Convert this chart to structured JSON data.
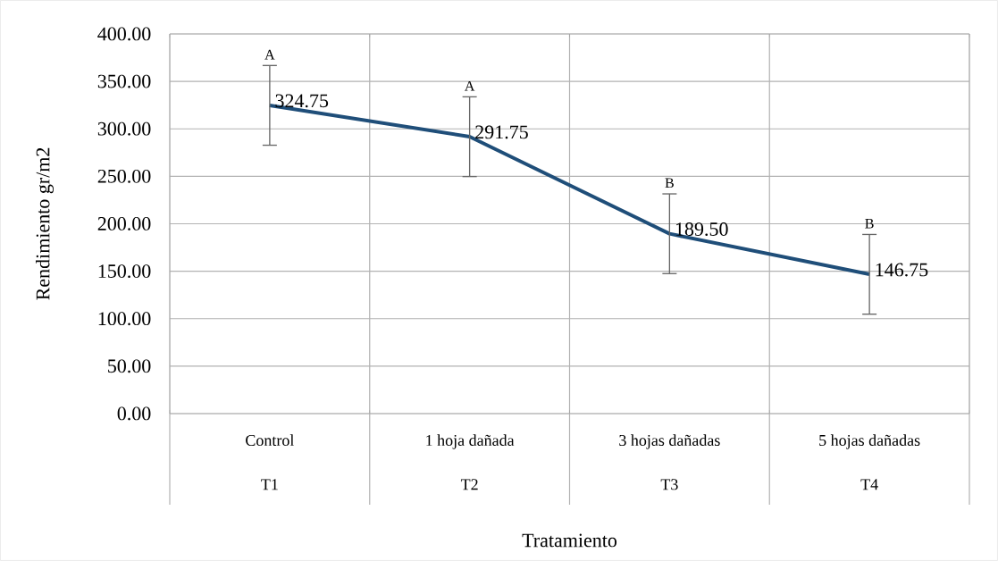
{
  "chart_data": {
    "type": "line",
    "xlabel": "Tratamiento",
    "ylabel": "Rendimiento gr/m2",
    "categories": [
      "Control",
      "1 hoja dañada",
      "3 hojas dañadas",
      "5 hojas dañadas"
    ],
    "series": [
      {
        "color": "#1f4e79",
        "values": [
          324.75,
          291.75,
          189.5,
          146.75
        ],
        "errors": [
          42,
          42,
          42,
          42
        ],
        "value_labels": [
          "324.75",
          "291.75",
          "189.50",
          "146.75"
        ]
      }
    ],
    "ylim": [
      0,
      400
    ],
    "yticks": [
      {
        "value": 0,
        "label": "0.00"
      },
      {
        "value": 50,
        "label": "50.00"
      },
      {
        "value": 100,
        "label": "100.00"
      },
      {
        "value": 150,
        "label": "150.00"
      },
      {
        "value": 200,
        "label": "200.00"
      },
      {
        "value": 250,
        "label": "250.00"
      },
      {
        "value": 300,
        "label": "300.00"
      },
      {
        "value": 350,
        "label": "350.00"
      },
      {
        "value": 400,
        "label": "400.00"
      }
    ],
    "annotations": [
      "T1",
      "T2",
      "T3",
      "T4",
      "A",
      "A",
      "B",
      "B"
    ],
    "grid": true,
    "marker": "none",
    "line_style": "solid"
  }
}
